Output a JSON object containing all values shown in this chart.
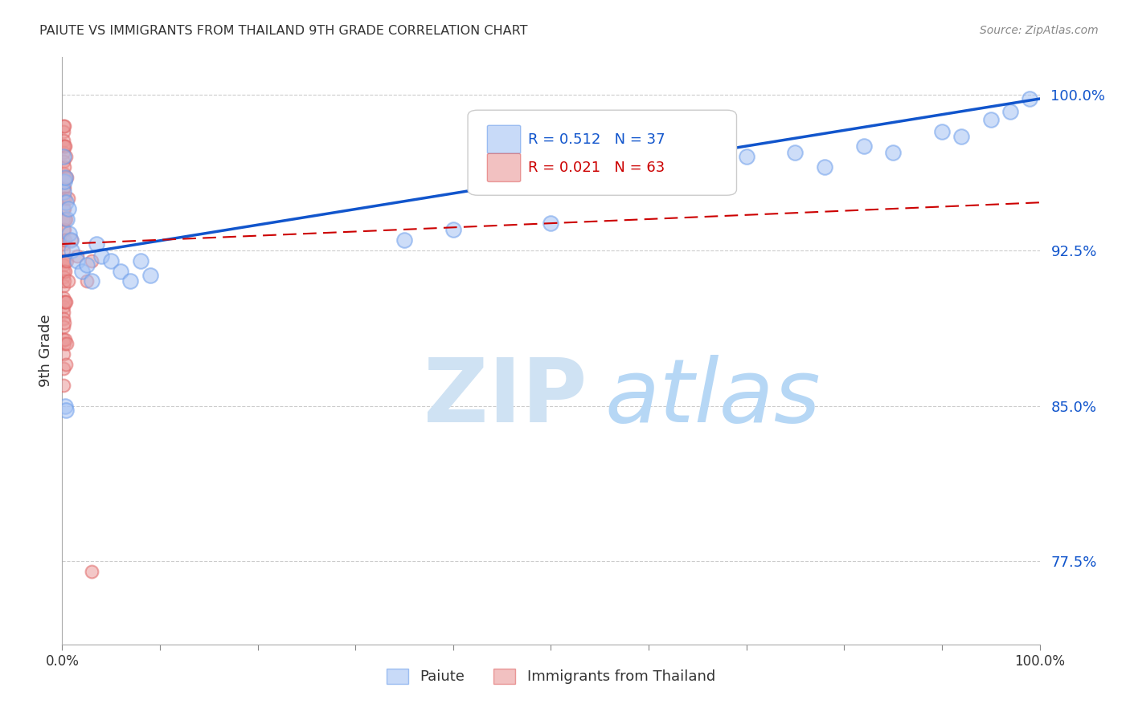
{
  "title": "PAIUTE VS IMMIGRANTS FROM THAILAND 9TH GRADE CORRELATION CHART",
  "source": "Source: ZipAtlas.com",
  "ylabel": "9th Grade",
  "xlim": [
    0.0,
    1.0
  ],
  "ylim": [
    0.735,
    1.018
  ],
  "yticks": [
    0.775,
    0.85,
    0.925,
    1.0
  ],
  "ytick_labels": [
    "77.5%",
    "85.0%",
    "92.5%",
    "100.0%"
  ],
  "xticks": [
    0.0,
    0.1,
    0.2,
    0.3,
    0.4,
    0.5,
    0.6,
    0.7,
    0.8,
    0.9,
    1.0
  ],
  "xtick_labels": [
    "0.0%",
    "",
    "",
    "",
    "",
    "",
    "",
    "",
    "",
    "",
    "100.0%"
  ],
  "blue_R": "0.512",
  "blue_N": "37",
  "pink_R": "0.021",
  "pink_N": "63",
  "blue_circle_color": "#a4c2f4",
  "blue_circle_edge": "#6d9eeb",
  "pink_circle_color": "#ea9999",
  "pink_circle_edge": "#e06666",
  "trend_blue_color": "#1155cc",
  "trend_pink_color": "#cc0000",
  "watermark_zip_color": "#cfe2f3",
  "watermark_atlas_color": "#b6d7f5",
  "legend_label_blue": "Paiute",
  "legend_label_pink": "Immigrants from Thailand",
  "blue_scatter_x": [
    0.001,
    0.001,
    0.002,
    0.003,
    0.004,
    0.005,
    0.006,
    0.007,
    0.009,
    0.01,
    0.015,
    0.02,
    0.025,
    0.03,
    0.035,
    0.04,
    0.05,
    0.06,
    0.07,
    0.08,
    0.09,
    0.003,
    0.004,
    0.35,
    0.4,
    0.5,
    0.65,
    0.7,
    0.75,
    0.78,
    0.82,
    0.85,
    0.9,
    0.92,
    0.95,
    0.97,
    0.99
  ],
  "blue_scatter_y": [
    0.97,
    0.953,
    0.958,
    0.96,
    0.948,
    0.94,
    0.945,
    0.933,
    0.93,
    0.925,
    0.92,
    0.915,
    0.918,
    0.91,
    0.928,
    0.922,
    0.92,
    0.915,
    0.91,
    0.92,
    0.913,
    0.85,
    0.848,
    0.93,
    0.935,
    0.938,
    0.968,
    0.97,
    0.972,
    0.965,
    0.975,
    0.972,
    0.982,
    0.98,
    0.988,
    0.992,
    0.998
  ],
  "pink_scatter_x": [
    0.001,
    0.001,
    0.001,
    0.001,
    0.001,
    0.001,
    0.001,
    0.001,
    0.001,
    0.001,
    0.001,
    0.001,
    0.001,
    0.001,
    0.001,
    0.001,
    0.001,
    0.001,
    0.001,
    0.001,
    0.001,
    0.001,
    0.001,
    0.001,
    0.001,
    0.001,
    0.001,
    0.001,
    0.001,
    0.001,
    0.002,
    0.002,
    0.002,
    0.002,
    0.002,
    0.002,
    0.002,
    0.002,
    0.002,
    0.002,
    0.002,
    0.003,
    0.003,
    0.003,
    0.003,
    0.003,
    0.003,
    0.003,
    0.003,
    0.004,
    0.004,
    0.004,
    0.004,
    0.005,
    0.005,
    0.005,
    0.006,
    0.006,
    0.01,
    0.015,
    0.025,
    0.03,
    0.03
  ],
  "pink_scatter_y": [
    0.985,
    0.982,
    0.978,
    0.975,
    0.972,
    0.968,
    0.962,
    0.958,
    0.955,
    0.95,
    0.945,
    0.94,
    0.935,
    0.93,
    0.928,
    0.925,
    0.92,
    0.918,
    0.915,
    0.912,
    0.908,
    0.902,
    0.898,
    0.895,
    0.892,
    0.888,
    0.882,
    0.875,
    0.868,
    0.86,
    0.985,
    0.975,
    0.965,
    0.955,
    0.945,
    0.935,
    0.92,
    0.91,
    0.9,
    0.89,
    0.88,
    0.975,
    0.96,
    0.95,
    0.94,
    0.93,
    0.915,
    0.9,
    0.882,
    0.97,
    0.94,
    0.9,
    0.87,
    0.96,
    0.92,
    0.88,
    0.95,
    0.91,
    0.93,
    0.922,
    0.91,
    0.92,
    0.77
  ],
  "blue_trend_x": [
    0.0,
    1.0
  ],
  "blue_trend_y": [
    0.922,
    0.998
  ],
  "pink_trend_x": [
    0.0,
    1.0
  ],
  "pink_trend_y": [
    0.928,
    0.948
  ],
  "grid_color": "#cccccc",
  "bg_color": "#ffffff",
  "marker_size_blue": 180,
  "marker_size_pink": 130
}
